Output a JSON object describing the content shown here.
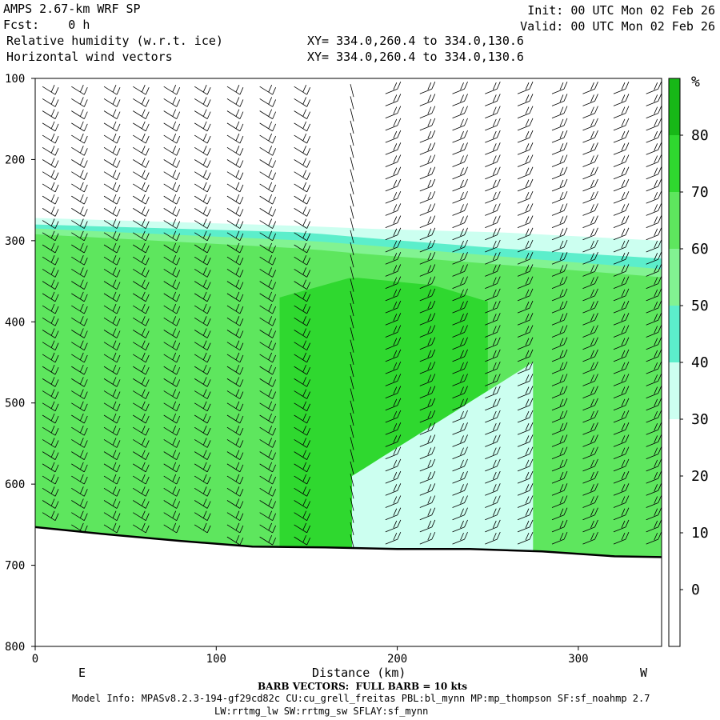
{
  "header": {
    "model": "AMPS 2.67-km WRF SP",
    "fcst": "Fcst:    0 h",
    "field1": "Relative humidity (w.r.t. ice)",
    "field2": "Horizontal wind vectors",
    "xy1": "XY= 334.0,260.4 to 334.0,130.6",
    "xy2": "XY= 334.0,260.4 to 334.0,130.6",
    "init": "Init: 00 UTC Mon 02 Feb 26",
    "valid": "Valid: 00 UTC Mon 02 Feb 26"
  },
  "footer": {
    "barb_note": "BARB VECTORS:  FULL BARB = 10 kts",
    "model_info": "Model Info: MPASv8.2.3-194-gf29cd82c CU:cu_grell_freitas PBL:bl_mynn MP:mp_thompson SF:sf_noahmp 2.7",
    "model_info2": "LW:rrtmg_lw SW:rrtmg_sw SFLAY:sf_mynn"
  },
  "chart_data": {
    "type": "heatmap",
    "title": "Relative humidity (w.r.t. ice)",
    "xlabel": "Distance (km)",
    "ylabel": "",
    "xlim": [
      0,
      346
    ],
    "ylim": [
      800,
      100
    ],
    "x_ticks": [
      0,
      100,
      200,
      300
    ],
    "y_ticks": [
      100,
      200,
      300,
      400,
      500,
      600,
      700,
      800
    ],
    "direction_labels": {
      "left": "E",
      "right": "W"
    },
    "colorbar": {
      "unit": "%",
      "levels": [
        0,
        10,
        20,
        30,
        40,
        50,
        60,
        70,
        80
      ],
      "bands": [
        {
          "from": 30,
          "to": 40,
          "color": "#ccfff0"
        },
        {
          "from": 40,
          "to": 50,
          "color": "#5ceecb"
        },
        {
          "from": 50,
          "to": 60,
          "color": "#82f392"
        },
        {
          "from": 60,
          "to": 70,
          "color": "#5ee65e"
        },
        {
          "from": 70,
          "to": 80,
          "color": "#2fd82f"
        },
        {
          "from": 80,
          "to": 100,
          "color": "#17b817"
        }
      ]
    },
    "terrain_pressure": [
      {
        "x": 0,
        "p": 653
      },
      {
        "x": 40,
        "p": 662
      },
      {
        "x": 80,
        "p": 670
      },
      {
        "x": 120,
        "p": 677
      },
      {
        "x": 160,
        "p": 678
      },
      {
        "x": 200,
        "p": 680
      },
      {
        "x": 240,
        "p": 680
      },
      {
        "x": 280,
        "p": 683
      },
      {
        "x": 320,
        "p": 689
      },
      {
        "x": 346,
        "p": 690
      }
    ],
    "rh_regions": [
      {
        "rh": 35,
        "x_from": 0,
        "x_to": 346,
        "top_pressure": [
          [
            0,
            272
          ],
          [
            150,
            282
          ],
          [
            180,
            285
          ],
          [
            260,
            290
          ],
          [
            346,
            300
          ]
        ]
      },
      {
        "rh": 45,
        "x_from": 0,
        "x_to": 346,
        "top_pressure": [
          [
            0,
            280
          ],
          [
            150,
            290
          ],
          [
            180,
            296
          ],
          [
            260,
            310
          ],
          [
            346,
            322
          ]
        ]
      },
      {
        "rh": 55,
        "x_from": 0,
        "x_to": 346,
        "top_pressure": [
          [
            0,
            285
          ],
          [
            150,
            300
          ],
          [
            180,
            305
          ],
          [
            260,
            320
          ],
          [
            346,
            335
          ]
        ]
      },
      {
        "rh": 65,
        "x_from": 0,
        "x_to": 346,
        "top_pressure": [
          [
            0,
            292
          ],
          [
            150,
            310
          ],
          [
            180,
            316
          ],
          [
            260,
            330
          ],
          [
            346,
            345
          ]
        ]
      },
      {
        "rh": 75,
        "x_from": 135,
        "x_to": 250,
        "top_pressure": [
          [
            135,
            370
          ],
          [
            175,
            345
          ],
          [
            220,
            355
          ],
          [
            250,
            375
          ]
        ]
      },
      {
        "rh": 35,
        "x_from": 175,
        "x_to": 275,
        "top_pressure": [
          [
            175,
            590
          ],
          [
            275,
            450
          ]
        ]
      }
    ],
    "wind_barbs": {
      "x_columns_km": [
        8,
        24,
        42,
        58,
        75,
        92,
        110,
        128,
        147,
        175,
        197,
        216,
        234,
        252,
        270,
        289,
        306,
        323,
        341
      ],
      "pressure_levels": [
        115,
        130,
        145,
        160,
        175,
        190,
        205,
        220,
        235,
        250,
        265,
        280,
        295,
        310,
        325,
        340,
        355,
        370,
        385,
        400,
        415,
        430,
        445,
        460,
        475,
        490,
        505,
        520,
        535,
        550,
        565,
        580,
        595,
        610,
        625,
        640,
        655,
        670
      ],
      "full_barb_kts": 10
    }
  }
}
